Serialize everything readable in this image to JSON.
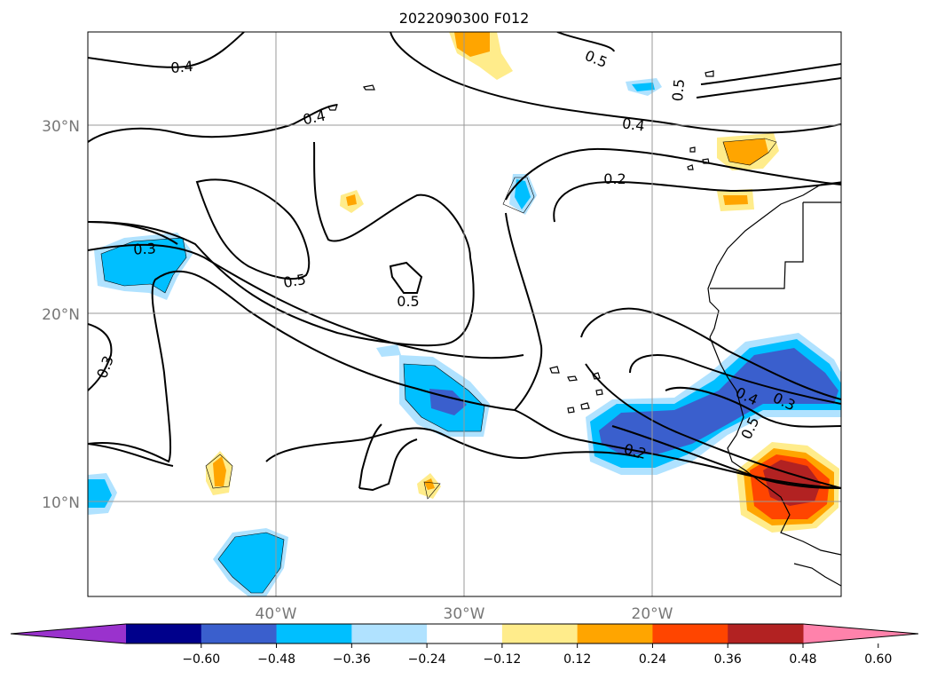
{
  "title": "2022090300 F012",
  "map": {
    "lat_labels": [
      "30°N",
      "20°N",
      "10°N"
    ],
    "lon_labels": [
      "40°W",
      "30°W",
      "20°W"
    ],
    "contour_labels": [
      "0.4",
      "0.4",
      "0.5",
      "0.5",
      "0.4",
      "0.2",
      "0.3",
      "0.5",
      "0.5",
      "0.3",
      "0.4",
      "0.3",
      "0.5",
      "0.2"
    ],
    "line_contour_color": "#000000",
    "grid": true
  },
  "colorbar": {
    "extend": "both",
    "colors": [
      "#9a32cd",
      "#00008b",
      "#3a5fcd",
      "#00bfff",
      "#b0e2ff",
      "#ffffff",
      "#ffec8b",
      "#ffa500",
      "#ff4500",
      "#b22222",
      "#ff82ab"
    ],
    "ticks": [
      "−0.60",
      "−0.48",
      "−0.36",
      "−0.24",
      "−0.12",
      "0.12",
      "0.24",
      "0.36",
      "0.48",
      "0.60"
    ]
  }
}
